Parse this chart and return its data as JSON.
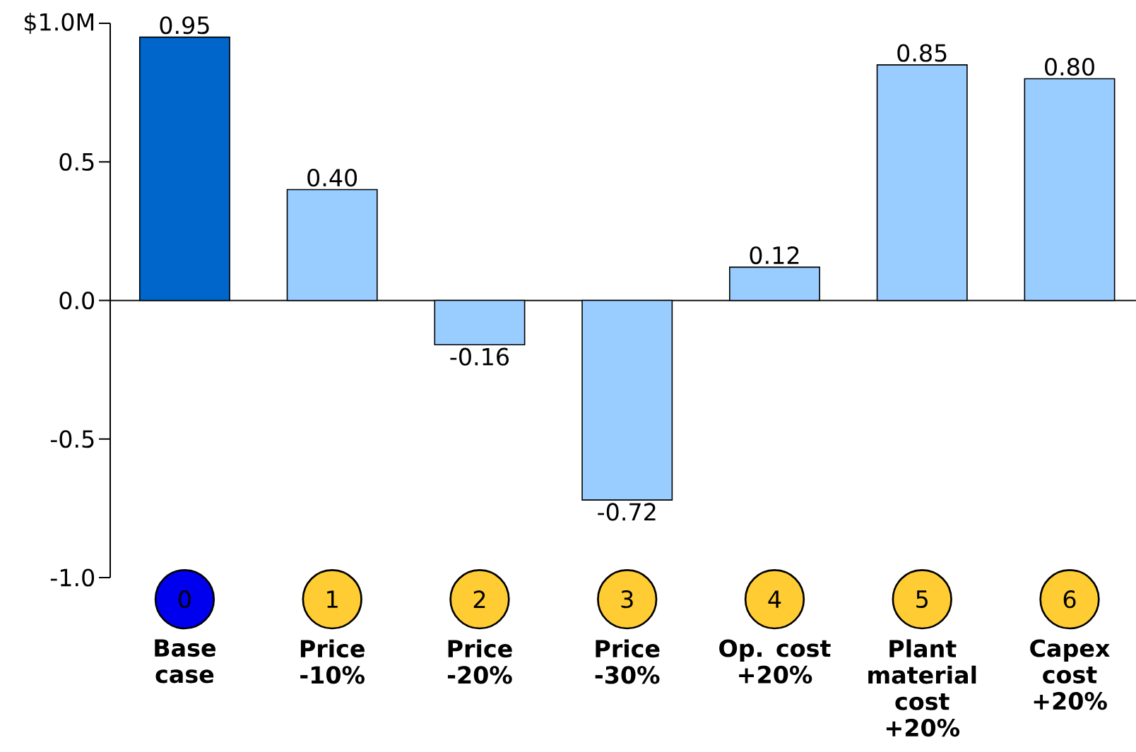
{
  "chart_data": {
    "type": "bar",
    "categories": [
      "Base case",
      "Price -10%",
      "Price -20%",
      "Price -30%",
      "Op. cost +20%",
      "Plant material cost +20%",
      "Capex cost +20%"
    ],
    "values": [
      0.95,
      0.4,
      -0.16,
      -0.72,
      0.12,
      0.85,
      0.8
    ],
    "colors": [
      "#0066cc",
      "#99ccff",
      "#99ccff",
      "#99ccff",
      "#99ccff",
      "#99ccff",
      "#99ccff"
    ],
    "value_labels": [
      "0.95",
      "0.40",
      "-0.16",
      "-0.72",
      "0.12",
      "0.85",
      "0.80"
    ],
    "ylim": [
      -1.0,
      1.0
    ],
    "yticks": [
      {
        "value": -1.0,
        "label": "-1.0"
      },
      {
        "value": -0.5,
        "label": "-0.5"
      },
      {
        "value": 0.0,
        "label": "0.0"
      },
      {
        "value": 0.5,
        "label": "0.5"
      },
      {
        "value": 1.0,
        "label": "$1.0M"
      }
    ],
    "annotations": [
      "0",
      "1",
      "2",
      "3",
      "4",
      "5",
      "6"
    ]
  }
}
